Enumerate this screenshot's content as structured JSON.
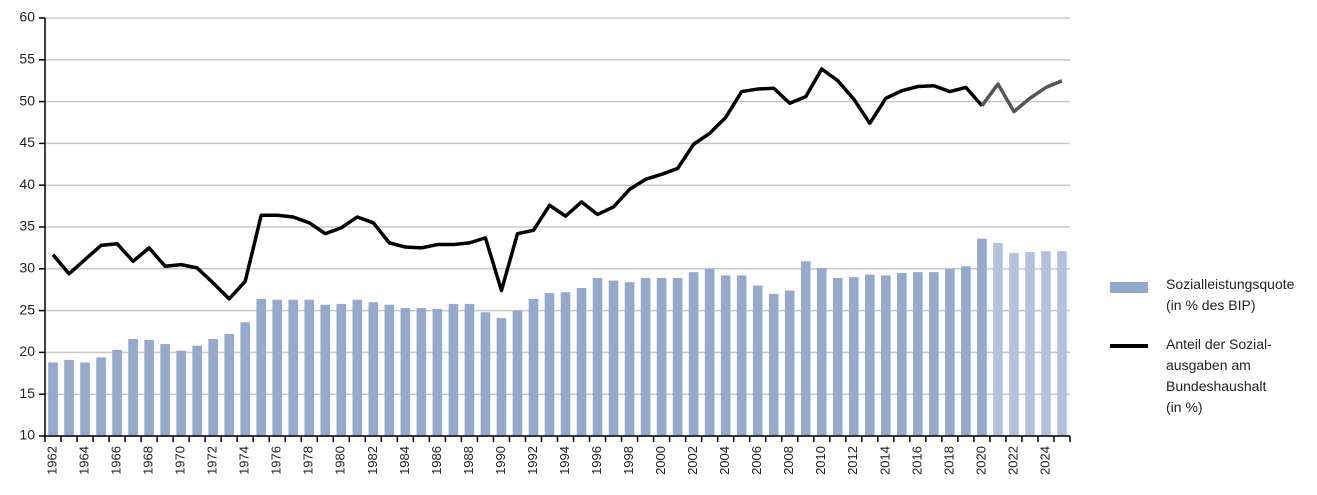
{
  "chart_data": {
    "type": "bar-line",
    "categories": [
      "1962",
      null,
      "1964",
      null,
      "1966",
      null,
      "1968",
      null,
      "1970",
      null,
      "1972",
      null,
      "1974",
      null,
      "1976",
      null,
      "1978",
      null,
      "1980",
      null,
      "1982",
      null,
      "1984",
      null,
      "1986",
      null,
      "1988",
      null,
      "1990",
      null,
      "1992",
      null,
      "1994",
      null,
      "1996",
      null,
      "1998",
      null,
      "2000",
      null,
      "2002",
      null,
      "2004",
      null,
      "2006",
      null,
      "2008",
      null,
      "2010",
      null,
      "2012",
      null,
      "2014",
      null,
      "2016",
      null,
      "2018",
      null,
      "2020",
      null,
      "2022",
      null,
      "2024",
      null
    ],
    "series": [
      {
        "name": "Sozialleistungsquote\n(in % des BIP)",
        "kind": "bar",
        "color": "#94a9cc",
        "values": [
          18.8,
          19.1,
          18.8,
          19.4,
          20.3,
          21.6,
          21.5,
          21.0,
          20.2,
          20.8,
          21.6,
          22.2,
          23.6,
          26.4,
          26.3,
          26.3,
          26.3,
          25.7,
          25.8,
          26.3,
          26.0,
          25.7,
          25.3,
          25.3,
          25.2,
          25.8,
          25.8,
          24.8,
          24.1,
          25.0,
          26.4,
          27.1,
          27.2,
          27.7,
          28.9,
          28.6,
          28.4,
          28.9,
          28.9,
          28.9,
          29.6,
          30.0,
          29.2,
          29.2,
          28.0,
          27.0,
          27.4,
          30.9,
          30.1,
          28.9,
          29.0,
          29.3,
          29.2,
          29.5,
          29.6,
          29.6,
          30.0,
          30.3,
          33.6,
          33.1,
          31.9,
          32.0,
          32.1,
          32.1
        ],
        "colors": [
          "#94a9cc",
          "#94a9cc",
          "#94a9cc",
          "#94a9cc",
          "#94a9cc",
          "#94a9cc",
          "#94a9cc",
          "#94a9cc",
          "#94a9cc",
          "#94a9cc",
          "#94a9cc",
          "#94a9cc",
          "#94a9cc",
          "#94a9cc",
          "#94a9cc",
          "#94a9cc",
          "#94a9cc",
          "#94a9cc",
          "#94a9cc",
          "#94a9cc",
          "#94a9cc",
          "#94a9cc",
          "#94a9cc",
          "#94a9cc",
          "#94a9cc",
          "#94a9cc",
          "#94a9cc",
          "#94a9cc",
          "#94a9cc",
          "#94a9cc",
          "#94a9cc",
          "#94a9cc",
          "#94a9cc",
          "#94a9cc",
          "#94a9cc",
          "#94a9cc",
          "#94a9cc",
          "#94a9cc",
          "#94a9cc",
          "#94a9cc",
          "#94a9cc",
          "#94a9cc",
          "#94a9cc",
          "#94a9cc",
          "#94a9cc",
          "#94a9cc",
          "#94a9cc",
          "#94a9cc",
          "#94a9cc",
          "#94a9cc",
          "#94a9cc",
          "#94a9cc",
          "#94a9cc",
          "#94a9cc",
          "#94a9cc",
          "#94a9cc",
          "#94a9cc",
          "#94a9cc",
          "#94a9cc",
          "#b3c2dc",
          "#b3c2dc",
          "#b3c2dc",
          "#b3c2dc",
          "#b3c2dc"
        ]
      },
      {
        "name": "Anteil der Sozial-\nausgaben am\nBundeshaushalt\n(in %)",
        "kind": "line",
        "color": "#000000",
        "values": [
          31.7,
          29.4,
          31.1,
          32.8,
          33.0,
          30.9,
          32.5,
          30.3,
          30.5,
          30.1,
          28.3,
          26.4,
          28.5,
          36.4,
          36.4,
          36.2,
          35.5,
          34.2,
          34.9,
          36.2,
          35.5,
          33.1,
          32.6,
          32.5,
          32.9,
          32.9,
          33.1,
          33.7,
          27.4,
          34.2,
          34.6,
          37.6,
          36.3,
          38.0,
          36.5,
          37.4,
          39.5,
          40.7,
          41.3,
          42.0,
          44.9,
          46.2,
          48.1,
          51.2,
          51.5,
          51.6,
          49.8,
          50.6,
          53.9,
          52.5,
          50.3,
          47.4,
          50.4,
          51.3,
          51.8,
          51.9,
          51.2,
          51.7,
          49.5,
          52.1,
          48.8,
          50.4,
          51.7,
          52.5
        ],
        "point_colors": [
          "#000000",
          "#000000",
          "#000000",
          "#000000",
          "#000000",
          "#000000",
          "#000000",
          "#000000",
          "#000000",
          "#000000",
          "#000000",
          "#000000",
          "#000000",
          "#000000",
          "#000000",
          "#000000",
          "#000000",
          "#000000",
          "#000000",
          "#000000",
          "#000000",
          "#000000",
          "#000000",
          "#000000",
          "#000000",
          "#000000",
          "#000000",
          "#000000",
          "#000000",
          "#000000",
          "#000000",
          "#000000",
          "#000000",
          "#000000",
          "#000000",
          "#000000",
          "#000000",
          "#000000",
          "#000000",
          "#000000",
          "#000000",
          "#000000",
          "#000000",
          "#000000",
          "#000000",
          "#000000",
          "#000000",
          "#000000",
          "#000000",
          "#000000",
          "#000000",
          "#000000",
          "#000000",
          "#000000",
          "#000000",
          "#000000",
          "#000000",
          "#000000",
          "#000000",
          "#555555",
          "#555555",
          "#555555",
          "#555555",
          "#555555"
        ]
      }
    ],
    "ylim": [
      10,
      60
    ],
    "yticks": [
      10,
      15,
      20,
      25,
      30,
      35,
      40,
      45,
      50,
      55,
      60
    ],
    "grid": true,
    "legend": "right"
  }
}
